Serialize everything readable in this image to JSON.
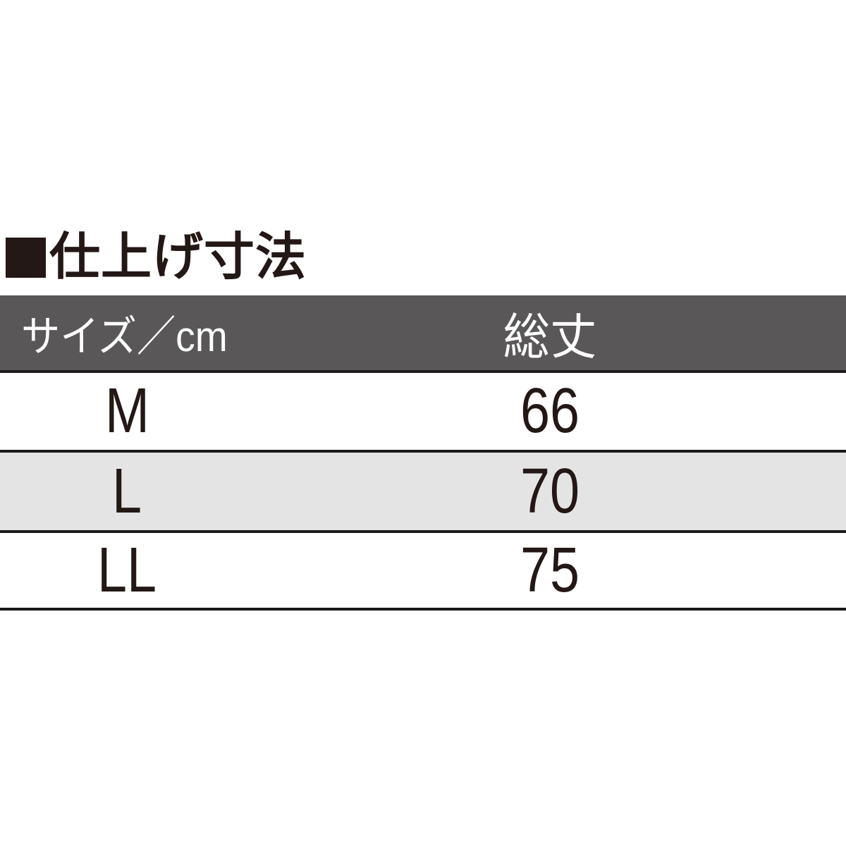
{
  "title": {
    "bullet_icon": "black-square",
    "text": "仕上げ寸法"
  },
  "table": {
    "header": {
      "col1": "サイズ／cm",
      "col2": "総丈"
    },
    "rows": [
      {
        "size": "M",
        "length": "66"
      },
      {
        "size": "L",
        "length": "70"
      },
      {
        "size": "LL",
        "length": "75"
      }
    ]
  },
  "chart_data": {
    "type": "table",
    "title": "仕上げ寸法",
    "unit": "cm",
    "columns": [
      "サイズ／cm",
      "総丈"
    ],
    "rows": [
      [
        "M",
        66
      ],
      [
        "L",
        70
      ],
      [
        "LL",
        75
      ]
    ]
  },
  "colors": {
    "header_bg": "#595757",
    "header_text": "#ffffff",
    "row_bg": "#ffffff",
    "row_alt_bg": "#e4e4e5",
    "border": "#1a1a1a",
    "ink": "#231815",
    "page_bg": "#ffffff"
  }
}
